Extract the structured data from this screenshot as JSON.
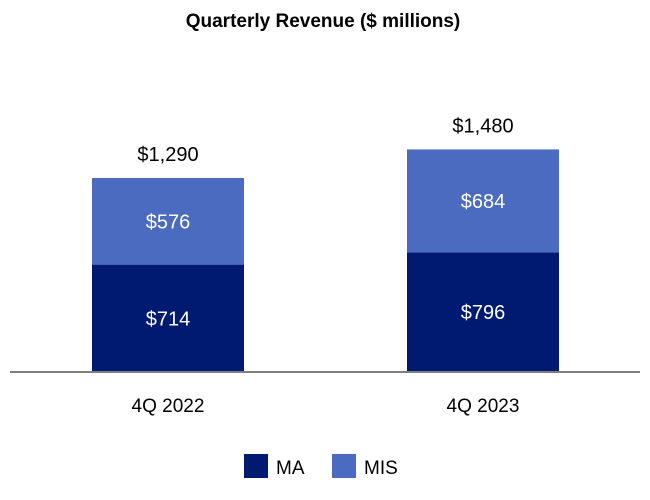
{
  "chart_data": {
    "type": "bar",
    "stacked": true,
    "title": "Quarterly Revenue ($ millions)",
    "categories": [
      "4Q 2022",
      "4Q 2023"
    ],
    "series": [
      {
        "name": "MA",
        "values": [
          714,
          796
        ],
        "labels": [
          "$714",
          "$796"
        ],
        "color": "#001A72"
      },
      {
        "name": "MIS",
        "values": [
          576,
          684
        ],
        "labels": [
          "$576",
          "$684"
        ],
        "color": "#4A6BBF"
      }
    ],
    "totals": [
      1290,
      1480
    ],
    "total_labels": [
      "$1,290",
      "$1,480"
    ],
    "legend": "bottom",
    "grid": false,
    "axis_color": "#7F7F7F"
  }
}
